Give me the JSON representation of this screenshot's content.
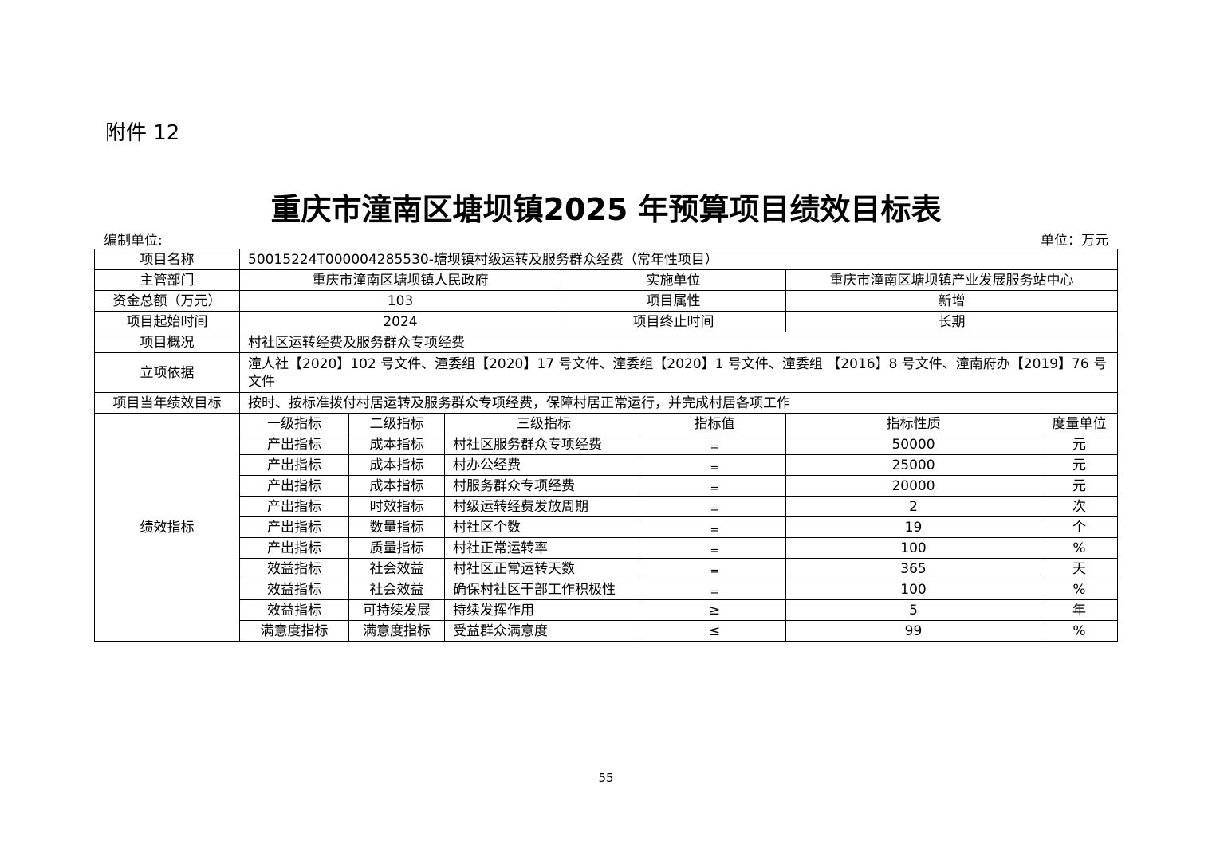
{
  "attachment": "附件 12",
  "title": "重庆市潼南区塘坝镇2025 年预算项目绩效目标表",
  "prepared_by_label": "编制单位:",
  "unit_label": "单位：万元",
  "info": {
    "project_name_label": "项目名称",
    "project_name": "50015224T000004285530-塘坝镇村级运转及服务群众经费（常年性项目）",
    "dept_label": "主管部门",
    "dept": "重庆市潼南区塘坝镇人民政府",
    "impl_label": "实施单位",
    "impl": "重庆市潼南区塘坝镇产业发展服务站中心",
    "fund_label": "资金总额（万元）",
    "fund": "103",
    "attr_label": "项目属性",
    "attr": "新增",
    "start_label": "项目起始时间",
    "start": "2024",
    "end_label": "项目终止时间",
    "end": "长期",
    "overview_label": "项目概况",
    "overview": "村社区运转经费及服务群众专项经费",
    "basis_label": "立项依据",
    "basis": "潼人社【2020】102  号文件、潼委组【2020】17  号文件、潼委组【2020】1  号文件、潼委组 【2016】8  号文件、潼南府办【2019】76  号文件",
    "goal_label": "项目当年绩效目标",
    "goal": "按时、按标准拨付村居运转及服务群众专项经费，保障村居正常运行，并完成村居各项工作"
  },
  "indicators": {
    "section_label": "绩效指标",
    "headers": [
      "一级指标",
      "二级指标",
      "三级指标",
      "指标值",
      "指标性质",
      "度量单位"
    ],
    "rows": [
      [
        "产出指标",
        "成本指标",
        "村社区服务群众专项经费",
        "=",
        "50000",
        "元"
      ],
      [
        "产出指标",
        "成本指标",
        "村办公经费",
        "=",
        "25000",
        "元"
      ],
      [
        "产出指标",
        "成本指标",
        "村服务群众专项经费",
        "=",
        "20000",
        "元"
      ],
      [
        "产出指标",
        "时效指标",
        "村级运转经费发放周期",
        "=",
        "2",
        "次"
      ],
      [
        "产出指标",
        "数量指标",
        "村社区个数",
        "=",
        "19",
        "个"
      ],
      [
        "产出指标",
        "质量指标",
        "村社正常运转率",
        "=",
        "100",
        "%"
      ],
      [
        "效益指标",
        "社会效益",
        "村社区正常运转天数",
        "=",
        "365",
        "天"
      ],
      [
        "效益指标",
        "社会效益",
        "确保村社区干部工作积极性",
        "=",
        "100",
        "%"
      ],
      [
        "效益指标",
        "可持续发展",
        "持续发挥作用",
        "≥",
        "5",
        "年"
      ],
      [
        "满意度指标",
        "满意度指标",
        "受益群众满意度",
        "≤",
        "99",
        "%"
      ]
    ]
  },
  "page_number": "55"
}
